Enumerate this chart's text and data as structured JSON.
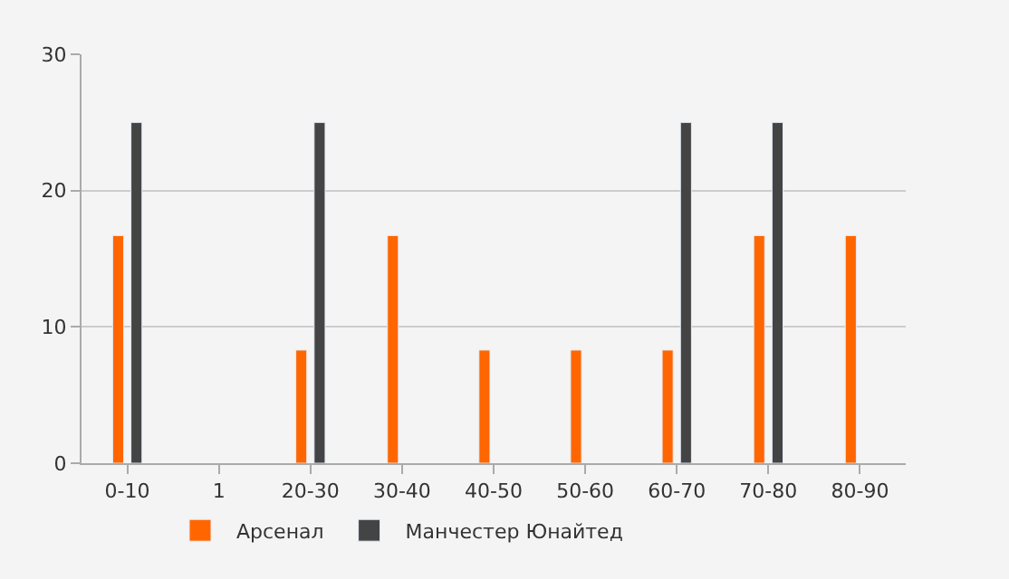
{
  "chart_data": {
    "type": "bar",
    "categories": [
      "0-10",
      "1",
      "20-30",
      "30-40",
      "40-50",
      "50-60",
      "60-70",
      "70-80",
      "80-90"
    ],
    "series": [
      {
        "name": "Арсенал",
        "color": "#ff6600",
        "values": [
          16.7,
          null,
          8.3,
          16.7,
          8.3,
          8.3,
          8.3,
          16.7,
          16.7
        ]
      },
      {
        "name": "Манчестер Юнайтед",
        "color": "#444444",
        "values": [
          25,
          null,
          25,
          null,
          null,
          null,
          25,
          25,
          null
        ]
      }
    ],
    "ylim": [
      0,
      30
    ],
    "yticks": [
      0,
      10,
      20,
      30
    ],
    "grid": "y",
    "legend": "bottom left"
  }
}
